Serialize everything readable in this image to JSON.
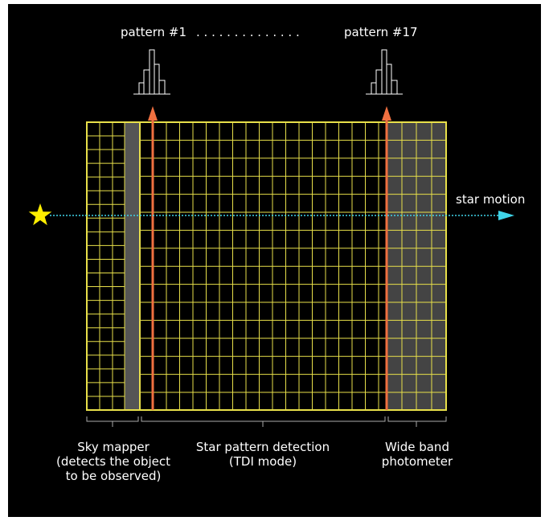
{
  "labels": {
    "pattern_first": "pattern #1",
    "pattern_dots": ". . . . . . . . . . . . . .",
    "pattern_last": "pattern #17",
    "star_motion": "star motion"
  },
  "sections": [
    {
      "lines": [
        "Sky mapper",
        "(detects the object",
        "to be observed)"
      ]
    },
    {
      "lines": [
        "Star pattern detection",
        "(TDI mode)"
      ]
    },
    {
      "lines": [
        "Wide band",
        "photometer"
      ]
    }
  ],
  "colors": {
    "background": "#000000",
    "grid": "#e8e04a",
    "shade": "#555555",
    "readout_line": "#f07040",
    "motion_arrow": "#3fd4e8",
    "star": "#ffee00",
    "text": "#ffffff",
    "bracket": "#aaaaaa"
  }
}
